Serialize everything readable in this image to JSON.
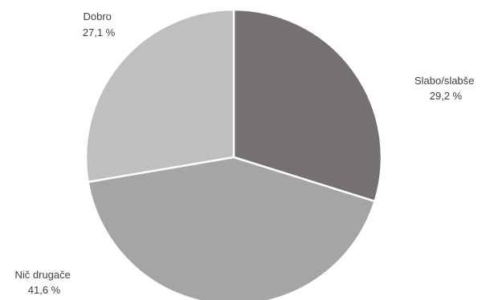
{
  "chart_data": {
    "type": "pie",
    "title": "",
    "legend": "none",
    "start_angle_deg": 0,
    "direction": "clockwise",
    "slices": [
      {
        "label": "Slabo/slabše",
        "value": 29.2,
        "value_text": "29,2 %",
        "color": "#767171"
      },
      {
        "label": "Nič drugače",
        "value": 41.6,
        "value_text": "41,6 %",
        "color": "#a5a5a5"
      },
      {
        "label": "Dobro",
        "value": 27.1,
        "value_text": "27,1  %",
        "color": "#bfbfbf"
      }
    ],
    "slice_border_color": "#ffffff"
  }
}
